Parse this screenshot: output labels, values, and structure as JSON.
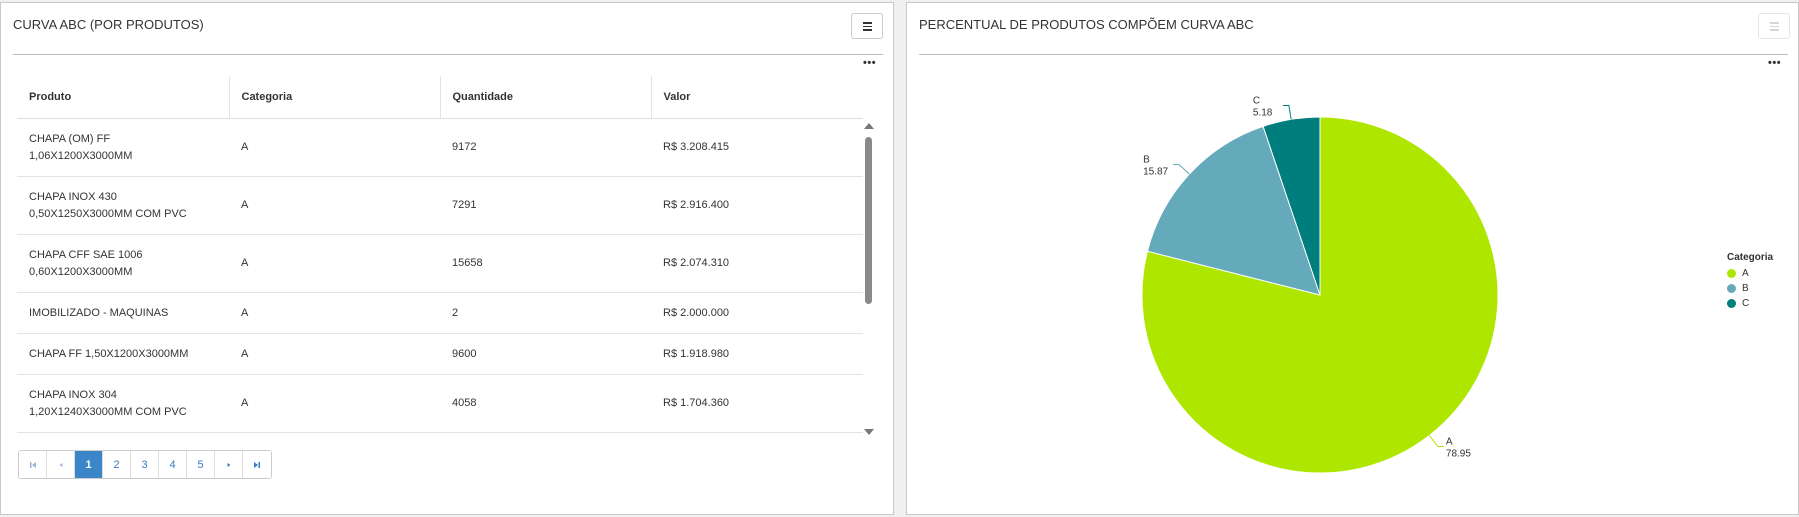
{
  "left_panel": {
    "title": "CURVA ABC (POR PRODUTOS)",
    "table": {
      "headers": [
        "Produto",
        "Categoria",
        "Quantidade",
        "Valor"
      ],
      "rows": [
        {
          "produto_1": "CHAPA (OM) FF",
          "produto_2": "1,06X1200X3000MM",
          "categoria": "A",
          "quantidade": "9172",
          "valor": "R$ 3.208.415"
        },
        {
          "produto_1": "CHAPA INOX 430",
          "produto_2": "0,50X1250X3000MM COM PVC",
          "categoria": "A",
          "quantidade": "7291",
          "valor": "R$ 2.916.400"
        },
        {
          "produto_1": "CHAPA CFF SAE 1006",
          "produto_2": "0,60X1200X3000MM",
          "categoria": "A",
          "quantidade": "15658",
          "valor": "R$ 2.074.310"
        },
        {
          "produto_1": "IMOBILIZADO - MAQUINAS",
          "produto_2": "",
          "categoria": "A",
          "quantidade": "2",
          "valor": "R$ 2.000.000"
        },
        {
          "produto_1": "CHAPA FF 1,50X1200X3000MM",
          "produto_2": "",
          "categoria": "A",
          "quantidade": "9600",
          "valor": "R$ 1.918.980"
        },
        {
          "produto_1": "CHAPA INOX 304",
          "produto_2": "1,20X1240X3000MM COM PVC",
          "categoria": "A",
          "quantidade": "4058",
          "valor": "R$ 1.704.360"
        }
      ]
    },
    "pagination": {
      "pages": [
        "1",
        "2",
        "3",
        "4",
        "5"
      ],
      "current": "1",
      "icons": [
        "first-page-icon",
        "prev-page-icon",
        "next-page-icon",
        "last-page-icon"
      ]
    },
    "menu_icon": "hamburger-icon",
    "more_icon": "more-dots-icon"
  },
  "right_panel": {
    "title": "PERCENTUAL DE PRODUTOS COMPÕEM CURVA ABC",
    "menu_icon": "hamburger-icon",
    "more_icon": "more-dots-icon"
  },
  "chart_data": {
    "type": "pie",
    "title": "PERCENTUAL DE PRODUTOS COMPÕEM CURVA ABC",
    "categories": [
      "A",
      "B",
      "C"
    ],
    "values": [
      78.95,
      15.87,
      5.18
    ],
    "colors": [
      "#aee600",
      "#65aabb",
      "#007d7d"
    ],
    "legend": {
      "title": "Categoria",
      "placement": "right"
    }
  },
  "colors": {
    "accent": "#3a86c8",
    "link": "#3a7cc2"
  }
}
